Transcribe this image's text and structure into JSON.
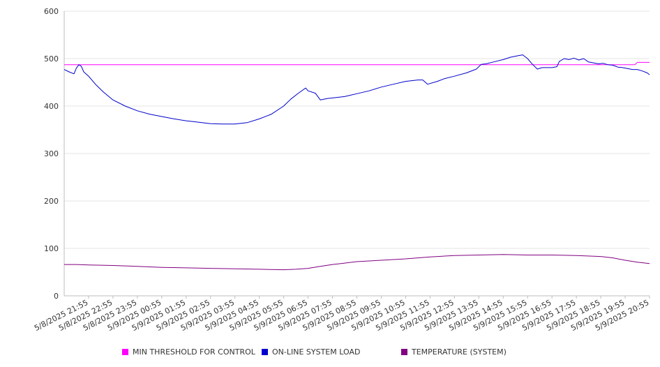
{
  "chart_data": {
    "type": "line",
    "title": "",
    "xlabel": "",
    "ylabel": "",
    "ylim": [
      0,
      600
    ],
    "yticks": [
      0,
      100,
      200,
      300,
      400,
      500,
      600
    ],
    "grid": "horizontal",
    "legend_position": "bottom",
    "categories": [
      "5/8/2025 21:55",
      "5/8/2025 22:55",
      "5/8/2025 23:55",
      "5/9/2025 00:55",
      "5/9/2025 01:55",
      "5/9/2025 02:55",
      "5/9/2025 03:55",
      "5/9/2025 04:55",
      "5/9/2025 05:55",
      "5/9/2025 06:55",
      "5/9/2025 07:55",
      "5/9/2025 08:55",
      "5/9/2025 09:55",
      "5/9/2025 10:55",
      "5/9/2025 11:55",
      "5/9/2025 12:55",
      "5/9/2025 13:55",
      "5/9/2025 14:55",
      "5/9/2025 15:55",
      "5/9/2025 16:55",
      "5/9/2025 17:55",
      "5/9/2025 18:55",
      "5/9/2025 19:55",
      "5/9/2025 20:55"
    ],
    "series": [
      {
        "name": "MIN THRESHOLD FOR CONTROL",
        "color": "#ff00ff",
        "points": [
          [
            0,
            487
          ],
          [
            23.4,
            487
          ],
          [
            23.5,
            492
          ],
          [
            24,
            492
          ]
        ]
      },
      {
        "name": "ON-LINE SYSTEM LOAD",
        "color": "#0000cc",
        "points": [
          [
            0,
            477
          ],
          [
            0.2,
            472
          ],
          [
            0.4,
            468
          ],
          [
            0.5,
            480
          ],
          [
            0.6,
            487
          ],
          [
            0.7,
            484
          ],
          [
            0.8,
            472
          ],
          [
            1,
            463
          ],
          [
            1.3,
            445
          ],
          [
            1.6,
            430
          ],
          [
            2,
            413
          ],
          [
            2.5,
            400
          ],
          [
            3,
            390
          ],
          [
            3.5,
            383
          ],
          [
            4,
            378
          ],
          [
            4.5,
            373
          ],
          [
            5,
            369
          ],
          [
            5.5,
            366
          ],
          [
            6,
            363
          ],
          [
            6.5,
            362
          ],
          [
            7,
            362
          ],
          [
            7.5,
            365
          ],
          [
            8,
            373
          ],
          [
            8.5,
            383
          ],
          [
            9,
            400
          ],
          [
            9.3,
            415
          ],
          [
            9.6,
            427
          ],
          [
            9.9,
            438
          ],
          [
            10,
            432
          ],
          [
            10.3,
            427
          ],
          [
            10.5,
            413
          ],
          [
            10.8,
            416
          ],
          [
            11,
            417
          ],
          [
            11.5,
            420
          ],
          [
            12,
            426
          ],
          [
            12.5,
            432
          ],
          [
            13,
            440
          ],
          [
            13.5,
            446
          ],
          [
            14,
            452
          ],
          [
            14.5,
            455
          ],
          [
            14.7,
            455
          ],
          [
            14.9,
            446
          ],
          [
            15.3,
            452
          ],
          [
            15.6,
            458
          ],
          [
            16,
            463
          ],
          [
            16.5,
            470
          ],
          [
            16.9,
            478
          ],
          [
            17.1,
            488
          ],
          [
            17.3,
            489
          ],
          [
            17.6,
            493
          ],
          [
            18,
            498
          ],
          [
            18.3,
            503
          ],
          [
            18.6,
            506
          ],
          [
            18.8,
            508
          ],
          [
            19,
            500
          ],
          [
            19.2,
            488
          ],
          [
            19.4,
            478
          ],
          [
            19.6,
            481
          ],
          [
            20,
            481
          ],
          [
            20.2,
            483
          ],
          [
            20.3,
            494
          ],
          [
            20.5,
            500
          ],
          [
            20.7,
            498
          ],
          [
            20.9,
            501
          ],
          [
            21.1,
            497
          ],
          [
            21.3,
            500
          ],
          [
            21.5,
            493
          ],
          [
            21.7,
            491
          ],
          [
            21.9,
            489
          ],
          [
            22.1,
            490
          ],
          [
            22.3,
            487
          ],
          [
            22.5,
            486
          ],
          [
            22.7,
            482
          ],
          [
            22.9,
            481
          ],
          [
            23.1,
            479
          ],
          [
            23.3,
            477
          ],
          [
            23.5,
            477
          ],
          [
            23.7,
            474
          ],
          [
            23.9,
            470
          ],
          [
            24,
            466
          ]
        ]
      },
      {
        "name": "TEMPERATURE (SYSTEM)",
        "color": "#800080",
        "points": [
          [
            0,
            66
          ],
          [
            0.5,
            66
          ],
          [
            1,
            65
          ],
          [
            2,
            64
          ],
          [
            3,
            62
          ],
          [
            4,
            60
          ],
          [
            5,
            59
          ],
          [
            6,
            58
          ],
          [
            7,
            57
          ],
          [
            8,
            56
          ],
          [
            9,
            55
          ],
          [
            9.5,
            56
          ],
          [
            10,
            58
          ],
          [
            10.5,
            62
          ],
          [
            11,
            66
          ],
          [
            11.5,
            69
          ],
          [
            12,
            72
          ],
          [
            13,
            75
          ],
          [
            14,
            78
          ],
          [
            15,
            82
          ],
          [
            16,
            85
          ],
          [
            17,
            86
          ],
          [
            18,
            87
          ],
          [
            19,
            86
          ],
          [
            20,
            86
          ],
          [
            21,
            85
          ],
          [
            22,
            83
          ],
          [
            22.5,
            80
          ],
          [
            23,
            75
          ],
          [
            23.5,
            71
          ],
          [
            24,
            68
          ]
        ]
      }
    ]
  }
}
